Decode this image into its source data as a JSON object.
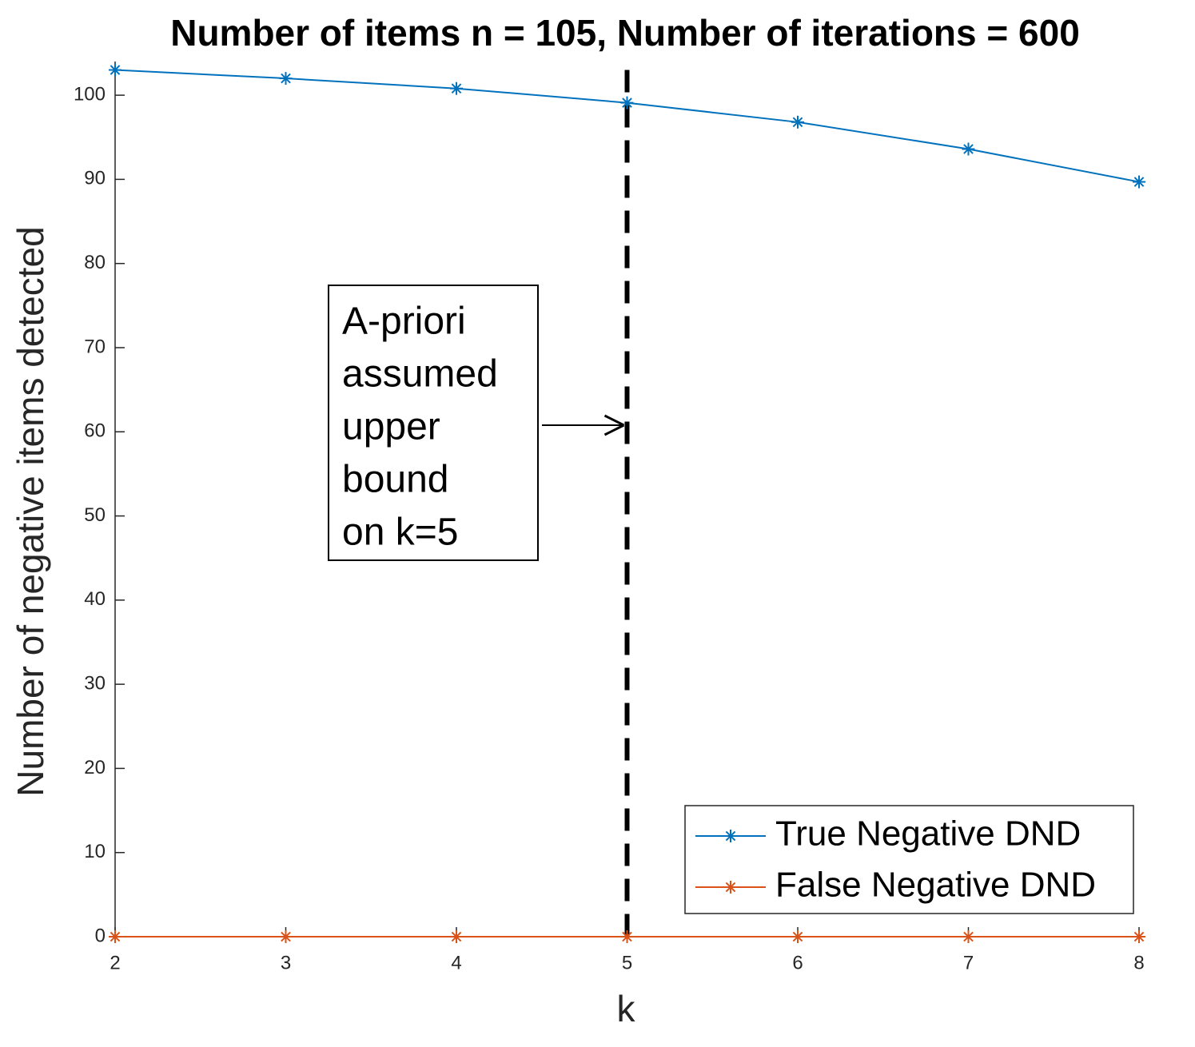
{
  "chart_data": {
    "type": "line",
    "title": "Number of items n = 105,   Number of iterations = 600",
    "x_label": "k",
    "y_label": "Number of negative items detected",
    "x": [
      2,
      3,
      4,
      5,
      6,
      7,
      8
    ],
    "series": [
      {
        "name": "True Negative DND",
        "color": "#0072bd",
        "values": [
          103,
          102,
          100.8,
          99.1,
          96.8,
          93.6,
          89.7
        ]
      },
      {
        "name": "False Negative DND",
        "color": "#d95319",
        "values": [
          0,
          0,
          0,
          0,
          0,
          0,
          0
        ]
      }
    ],
    "xlim": [
      2,
      8
    ],
    "xticks": [
      2,
      3,
      4,
      5,
      6,
      7,
      8
    ],
    "ylim": [
      0,
      104
    ],
    "yticks": [
      0,
      10,
      20,
      30,
      40,
      50,
      60,
      70,
      80,
      90,
      100
    ],
    "vline": 5,
    "annotation": [
      "A-priori",
      "assumed",
      "upper",
      "bound",
      "on k=5"
    ],
    "legend": "lower right"
  }
}
